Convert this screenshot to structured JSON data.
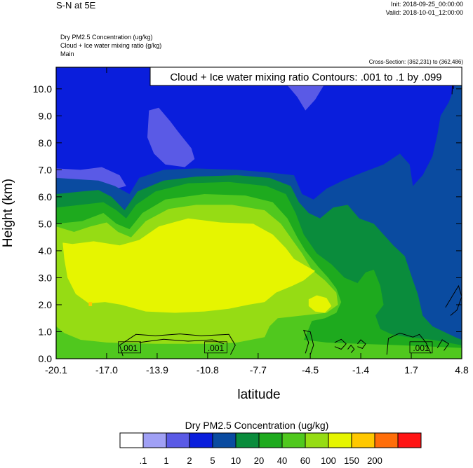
{
  "header": {
    "title": "S-N at 5E",
    "init": "Init: 2018-09-25_00:00:00",
    "valid": "Valid: 2018-10-01_12:00:00",
    "fields": [
      "Dry PM2.5 Concentration   (ug/kg)",
      "Cloud + Ice water mixing ratio   (g/kg)",
      "Main"
    ],
    "cross_section": "Cross-Section: (362,231) to (362,486)"
  },
  "chart_data": {
    "type": "heatmap",
    "title": "",
    "xlabel": "latitude",
    "ylabel": "Height (km)",
    "xlim": [
      -20.1,
      4.8
    ],
    "ylim": [
      0.0,
      10.8
    ],
    "x_ticks": [
      -20.1,
      -17.0,
      -13.9,
      -10.8,
      -7.7,
      -4.5,
      -1.4,
      1.7,
      4.8
    ],
    "x_tick_labels": [
      "-20.1",
      "-17.0",
      "-13.9",
      "-10.8",
      "-7.7",
      "-4.5",
      "-1.4",
      "1.7",
      "4.8"
    ],
    "y_ticks": [
      0,
      1,
      2,
      3,
      4,
      5,
      6,
      7,
      8,
      9,
      10
    ],
    "y_tick_labels": [
      "0.0",
      "1.0",
      "2.0",
      "3.0",
      "4.0",
      "5.0",
      "6.0",
      "7.0",
      "8.0",
      "9.0",
      "10.0"
    ],
    "contour_note": "Cloud + Ice water mixing ratio Contours: .001 to .1 by .099",
    "contour_labels": [
      {
        "text": ".001",
        "x": -15.6,
        "y": 0.42
      },
      {
        "text": ".001",
        "x": -10.3,
        "y": 0.42
      },
      {
        "text": ".001",
        "x": 2.3,
        "y": 0.42
      }
    ],
    "colorbar": {
      "title": "Dry PM2.5 Concentration  (ug/kg)",
      "colors": [
        "#ffffff",
        "#a0a0f5",
        "#5a5ae6",
        "#0a1edc",
        "#0a4ba0",
        "#0a8c3c",
        "#1eaa1e",
        "#50c81e",
        "#96dc14",
        "#e6f500",
        "#ffc800",
        "#ff6e0a",
        "#ff1414"
      ],
      "labels": [
        ".1",
        "1",
        "2",
        "5",
        "10",
        "20",
        "40",
        "60",
        "100",
        "150",
        "200"
      ]
    },
    "regions": [
      {
        "level": 3,
        "points": [
          [
            -20.1,
            0
          ],
          [
            4.8,
            0
          ],
          [
            4.8,
            10.8
          ],
          [
            -20.1,
            10.8
          ]
        ]
      },
      {
        "level": 2,
        "points": [
          [
            -14.4,
            9.2
          ],
          [
            -13.8,
            9.3
          ],
          [
            -13.1,
            8.8
          ],
          [
            -12.6,
            8.4
          ],
          [
            -12.2,
            8.1
          ],
          [
            -11.8,
            7.8
          ],
          [
            -11.6,
            7.4
          ],
          [
            -12.2,
            7.1
          ],
          [
            -13.4,
            7.2
          ],
          [
            -14.1,
            7.6
          ],
          [
            -14.5,
            8.2
          ]
        ]
      },
      {
        "level": 2,
        "points": [
          [
            -20.1,
            7.05
          ],
          [
            -18.6,
            7.0
          ],
          [
            -17.3,
            7.1
          ],
          [
            -16.2,
            6.8
          ],
          [
            -15.8,
            6.4
          ],
          [
            -16.4,
            6.3
          ],
          [
            -17.8,
            6.4
          ],
          [
            -19.0,
            6.5
          ],
          [
            -20.1,
            6.5
          ]
        ]
      },
      {
        "level": 2,
        "points": [
          [
            -6.5,
            10.8
          ],
          [
            -6.0,
            10.2
          ],
          [
            -5.3,
            9.7
          ],
          [
            -4.8,
            9.2
          ],
          [
            -4.2,
            9.6
          ],
          [
            -3.7,
            10.1
          ],
          [
            -3.4,
            10.8
          ]
        ]
      },
      {
        "level": 4,
        "points": [
          [
            -20.1,
            6.7
          ],
          [
            -17.5,
            6.6
          ],
          [
            -16.5,
            6.4
          ],
          [
            -15.6,
            6.1
          ],
          [
            -15.0,
            6.7
          ],
          [
            -13.5,
            7.0
          ],
          [
            -11.5,
            7.05
          ],
          [
            -9.0,
            7.0
          ],
          [
            -7.0,
            6.9
          ],
          [
            -5.5,
            6.8
          ],
          [
            -5.0,
            6.1
          ],
          [
            -4.3,
            5.9
          ],
          [
            -3.5,
            6.3
          ],
          [
            -2.5,
            6.6
          ],
          [
            -1.3,
            6.9
          ],
          [
            0.0,
            7.2
          ],
          [
            1.0,
            7.6
          ],
          [
            1.6,
            7.2
          ],
          [
            1.8,
            6.4
          ],
          [
            2.4,
            6.8
          ],
          [
            3.0,
            7.5
          ],
          [
            3.3,
            8.3
          ],
          [
            3.5,
            9.0
          ],
          [
            4.0,
            9.5
          ],
          [
            4.5,
            10.3
          ],
          [
            4.8,
            10.6
          ],
          [
            4.8,
            0.0
          ],
          [
            -20.1,
            0.0
          ]
        ]
      },
      {
        "level": 5,
        "points": [
          [
            -20.1,
            6.1
          ],
          [
            -18.5,
            6.2
          ],
          [
            -17.5,
            6.25
          ],
          [
            -16.7,
            6.0
          ],
          [
            -15.9,
            5.5
          ],
          [
            -15.1,
            6.2
          ],
          [
            -13.5,
            6.6
          ],
          [
            -11.5,
            6.75
          ],
          [
            -9.0,
            6.8
          ],
          [
            -7.0,
            6.7
          ],
          [
            -5.7,
            6.4
          ],
          [
            -5.2,
            5.8
          ],
          [
            -4.6,
            5.4
          ],
          [
            -3.9,
            5.2
          ],
          [
            -3.1,
            5.6
          ],
          [
            -2.2,
            5.7
          ],
          [
            -1.5,
            5.2
          ],
          [
            -0.6,
            5.0
          ],
          [
            0.6,
            4.2
          ],
          [
            1.3,
            3.8
          ],
          [
            1.8,
            2.9
          ],
          [
            2.1,
            2.4
          ],
          [
            2.4,
            1.6
          ],
          [
            3.0,
            1.2
          ],
          [
            3.7,
            1.0
          ],
          [
            4.4,
            0.8
          ],
          [
            4.8,
            0.7
          ],
          [
            4.8,
            0.0
          ],
          [
            -20.1,
            0.0
          ]
        ]
      },
      {
        "level": 6,
        "points": [
          [
            -20.1,
            5.6
          ],
          [
            -18.6,
            5.7
          ],
          [
            -17.2,
            5.8
          ],
          [
            -16.4,
            5.5
          ],
          [
            -15.8,
            5.2
          ],
          [
            -15.2,
            5.7
          ],
          [
            -14.0,
            6.2
          ],
          [
            -12.0,
            6.5
          ],
          [
            -9.5,
            6.55
          ],
          [
            -7.2,
            6.4
          ],
          [
            -6.0,
            6.1
          ],
          [
            -5.4,
            5.4
          ],
          [
            -4.9,
            4.6
          ],
          [
            -4.1,
            3.9
          ],
          [
            -3.2,
            3.5
          ],
          [
            -2.4,
            3.0
          ],
          [
            -1.6,
            2.8
          ],
          [
            -1.1,
            3.2
          ],
          [
            -0.6,
            3.3
          ],
          [
            -0.2,
            2.7
          ],
          [
            0.0,
            2.0
          ],
          [
            -0.5,
            1.6
          ],
          [
            -0.2,
            1.1
          ],
          [
            0.5,
            0.9
          ],
          [
            1.5,
            0.8
          ],
          [
            3.0,
            0.7
          ],
          [
            4.8,
            0.5
          ],
          [
            4.8,
            0.0
          ],
          [
            -20.1,
            0.0
          ]
        ]
      },
      {
        "level": 7,
        "points": [
          [
            -20.1,
            5.0
          ],
          [
            -18.5,
            5.1
          ],
          [
            -17.2,
            5.4
          ],
          [
            -16.4,
            5.0
          ],
          [
            -15.6,
            4.8
          ],
          [
            -14.8,
            5.4
          ],
          [
            -13.4,
            5.9
          ],
          [
            -11.0,
            6.1
          ],
          [
            -8.5,
            6.05
          ],
          [
            -6.8,
            5.8
          ],
          [
            -5.9,
            5.2
          ],
          [
            -5.3,
            4.5
          ],
          [
            -4.8,
            4.0
          ],
          [
            -4.0,
            3.4
          ],
          [
            -3.4,
            3.0
          ],
          [
            -2.9,
            2.6
          ],
          [
            -2.6,
            2.1
          ],
          [
            -2.9,
            1.7
          ],
          [
            -3.6,
            1.5
          ],
          [
            -4.4,
            1.4
          ],
          [
            -4.6,
            1.1
          ],
          [
            -4.9,
            0.7
          ],
          [
            -3.5,
            0.6
          ],
          [
            -1.5,
            0.55
          ],
          [
            1.0,
            0.5
          ],
          [
            4.8,
            0.4
          ],
          [
            4.8,
            0.0
          ],
          [
            -20.1,
            0.0
          ]
        ]
      },
      {
        "level": 8,
        "points": [
          [
            -20.1,
            4.9
          ],
          [
            -19.0,
            4.7
          ],
          [
            -18.0,
            4.9
          ],
          [
            -17.0,
            5.05
          ],
          [
            -16.3,
            4.7
          ],
          [
            -15.5,
            4.5
          ],
          [
            -14.6,
            5.1
          ],
          [
            -13.2,
            5.55
          ],
          [
            -11.5,
            5.7
          ],
          [
            -9.3,
            5.7
          ],
          [
            -7.3,
            5.5
          ],
          [
            -6.3,
            5.0
          ],
          [
            -5.6,
            4.4
          ],
          [
            -5.0,
            3.9
          ],
          [
            -4.4,
            3.3
          ],
          [
            -3.6,
            2.9
          ],
          [
            -2.9,
            2.45
          ],
          [
            -2.8,
            2.0
          ],
          [
            -3.5,
            1.7
          ],
          [
            -5.0,
            1.6
          ],
          [
            -6.5,
            1.5
          ],
          [
            -7.0,
            1.2
          ],
          [
            -7.3,
            0.8
          ],
          [
            -9.0,
            0.6
          ],
          [
            -11.0,
            0.55
          ],
          [
            -14.0,
            0.55
          ],
          [
            -17.0,
            0.6
          ],
          [
            -18.6,
            0.7
          ],
          [
            -19.6,
            0.95
          ],
          [
            -20.1,
            1.2
          ]
        ]
      },
      {
        "level": 9,
        "points": [
          [
            -19.7,
            4.3
          ],
          [
            -19.1,
            4.25
          ],
          [
            -17.8,
            4.35
          ],
          [
            -16.2,
            4.2
          ],
          [
            -15.0,
            4.4
          ],
          [
            -13.8,
            4.9
          ],
          [
            -12.0,
            5.2
          ],
          [
            -10.0,
            5.05
          ],
          [
            -8.0,
            5.0
          ],
          [
            -6.8,
            4.6
          ],
          [
            -6.0,
            4.1
          ],
          [
            -5.5,
            3.7
          ],
          [
            -4.8,
            3.45
          ],
          [
            -4.2,
            3.25
          ],
          [
            -4.9,
            2.9
          ],
          [
            -5.6,
            2.7
          ],
          [
            -6.6,
            2.45
          ],
          [
            -7.3,
            2.1
          ],
          [
            -8.3,
            2.0
          ],
          [
            -9.5,
            1.85
          ],
          [
            -11.0,
            1.75
          ],
          [
            -12.8,
            1.7
          ],
          [
            -14.6,
            1.75
          ],
          [
            -16.1,
            2.0
          ],
          [
            -17.1,
            2.1
          ],
          [
            -18.1,
            2.05
          ],
          [
            -18.9,
            2.4
          ],
          [
            -19.4,
            3.0
          ],
          [
            -19.6,
            3.7
          ]
        ]
      },
      {
        "level": 9,
        "points": [
          [
            -4.6,
            2.2
          ],
          [
            -4.1,
            2.35
          ],
          [
            -3.5,
            2.25
          ],
          [
            -3.2,
            1.95
          ],
          [
            -3.6,
            1.7
          ],
          [
            -4.2,
            1.75
          ],
          [
            -4.6,
            1.95
          ]
        ]
      },
      {
        "level": 10,
        "points": [
          [
            -18.1,
            2.1
          ],
          [
            -17.9,
            2.1
          ],
          [
            -17.9,
            1.95
          ],
          [
            -18.1,
            1.95
          ]
        ]
      }
    ],
    "contours": [
      {
        "points": [
          [
            -16.0,
            0.1
          ],
          [
            -16.2,
            0.5
          ],
          [
            -15.2,
            0.9
          ],
          [
            -14.0,
            0.85
          ],
          [
            -12.5,
            0.92
          ],
          [
            -11.2,
            0.85
          ],
          [
            -9.5,
            0.9
          ],
          [
            -9.1,
            0.5
          ],
          [
            -9.4,
            0.15
          ]
        ]
      },
      {
        "points": [
          [
            -15.0,
            0.6
          ],
          [
            -13.5,
            0.72
          ],
          [
            -12.0,
            0.65
          ],
          [
            -10.5,
            0.7
          ],
          [
            -9.8,
            0.55
          ]
        ]
      },
      {
        "points": [
          [
            -4.8,
            0.2
          ],
          [
            -4.6,
            0.6
          ],
          [
            -4.9,
            1.05
          ],
          [
            -4.5,
            1.0
          ],
          [
            -4.3,
            0.5
          ],
          [
            -4.5,
            0.15
          ]
        ]
      },
      {
        "points": [
          [
            -3.0,
            0.6
          ],
          [
            -2.6,
            0.72
          ],
          [
            -2.3,
            0.55
          ],
          [
            -2.6,
            0.35
          ],
          [
            -3.0,
            0.45
          ]
        ]
      },
      {
        "points": [
          [
            -1.6,
            0.55
          ],
          [
            -1.4,
            0.7
          ],
          [
            -1.1,
            0.55
          ],
          [
            -1.3,
            0.38
          ],
          [
            -1.6,
            0.45
          ]
        ]
      },
      {
        "points": [
          [
            0.2,
            0.15
          ],
          [
            0.3,
            0.75
          ],
          [
            1.0,
            0.95
          ],
          [
            1.8,
            0.8
          ],
          [
            2.2,
            0.9
          ],
          [
            2.6,
            0.6
          ],
          [
            2.9,
            0.2
          ]
        ]
      },
      {
        "points": [
          [
            3.3,
            0.4
          ],
          [
            3.6,
            0.7
          ],
          [
            4.0,
            0.55
          ],
          [
            3.7,
            0.3
          ]
        ]
      },
      {
        "points": [
          [
            -2.2,
            0.35
          ],
          [
            -2.0,
            0.5
          ],
          [
            -1.8,
            0.35
          ],
          [
            -2.0,
            0.22
          ]
        ]
      },
      {
        "points": [
          [
            3.8,
            1.9
          ],
          [
            4.2,
            2.3
          ],
          [
            4.6,
            2.7
          ],
          [
            4.8,
            2.3
          ],
          [
            4.5,
            1.8
          ],
          [
            4.1,
            1.6
          ]
        ]
      },
      {
        "points": [
          [
            4.2,
            9.8
          ],
          [
            4.25,
            10.5
          ],
          [
            4.3,
            10.0
          ]
        ]
      }
    ]
  }
}
